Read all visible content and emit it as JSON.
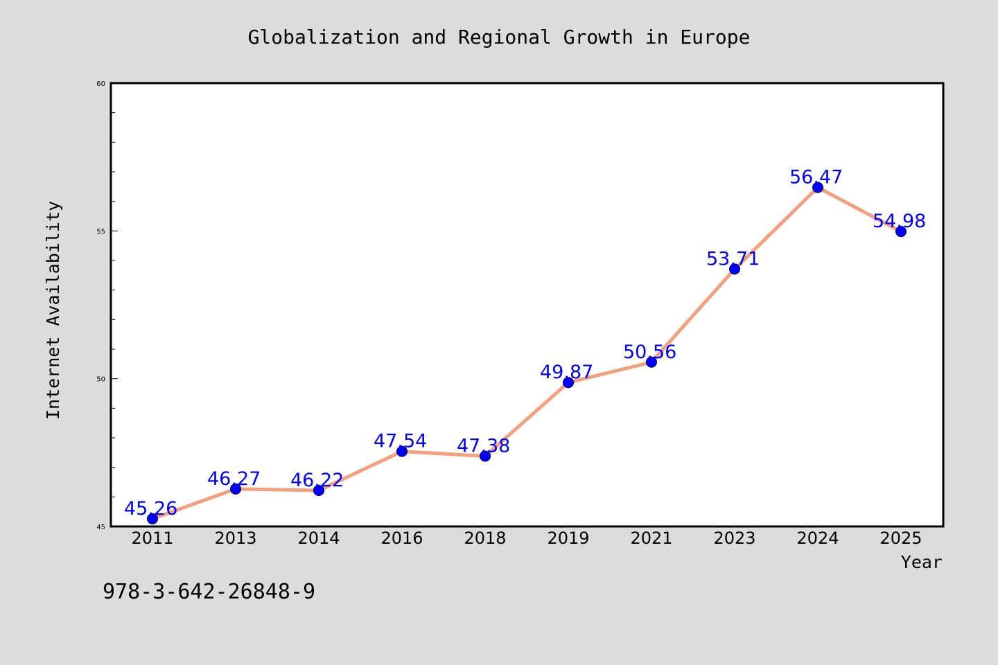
{
  "chart_data": {
    "type": "line",
    "title": "Globalization and Regional Growth in Europe",
    "xlabel": "Year",
    "ylabel": "Internet Availability",
    "categories": [
      "2011",
      "2013",
      "2014",
      "2016",
      "2018",
      "2019",
      "2021",
      "2023",
      "2024",
      "2025"
    ],
    "series": [
      {
        "values": [
          45.26,
          46.27,
          46.22,
          47.54,
          47.38,
          49.87,
          50.56,
          53.71,
          56.47,
          54.98
        ],
        "line_color": "#f4a07e",
        "marker_color": "#0000ff"
      }
    ],
    "data_labels": [
      "45.26",
      "46.27",
      "46.22",
      "47.54",
      "47.38",
      "49.87",
      "50.56",
      "53.71",
      "56.47",
      "54.98"
    ],
    "ylim": [
      45,
      60
    ],
    "y_ticks": [
      "45",
      "50",
      "55",
      "60"
    ],
    "grid": false,
    "legend": "none"
  },
  "footnote": "978-3-642-26848-9",
  "colors": {
    "background": "#dcdcdc",
    "plot_area": "#ffffff",
    "line": "#f4a07e",
    "marker": "#0000ff",
    "data_label": "#0000ff"
  }
}
